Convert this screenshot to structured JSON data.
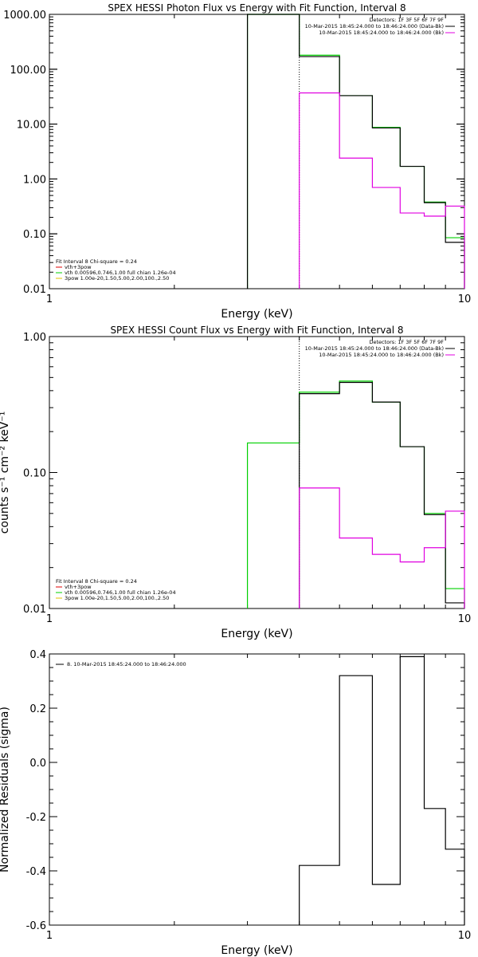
{
  "chart_data": [
    {
      "type": "line",
      "title": "SPEX HESSI Photon Flux vs Energy with Fit Function, Interval 8",
      "xlabel": "Energy (keV)",
      "ylabel": "",
      "xscale": "log",
      "yscale": "log",
      "xlim": [
        1,
        10
      ],
      "ylim": [
        0.01,
        1000
      ],
      "x_ticks": [
        "1",
        "10"
      ],
      "y_ticks": [
        "0.01",
        "0.10",
        "1.00",
        "10.00",
        "100.00",
        "1000.00"
      ],
      "x_edges": [
        3,
        4,
        5,
        6,
        7,
        8,
        9,
        10
      ],
      "series": [
        {
          "color": "#00d000",
          "values": [
            1000,
            180,
            33,
            8.7,
            1.7,
            0.38,
            0.085
          ]
        },
        {
          "color": "#000000",
          "values": [
            1000,
            170,
            33,
            8.5,
            1.7,
            0.37,
            0.07
          ]
        },
        {
          "color": "#e000e0",
          "values": [
            null,
            37,
            2.4,
            0.7,
            0.24,
            0.21,
            0.32
          ]
        }
      ],
      "legend_top": {
        "header": "Detectors: 1F 3F 5F 6F 7F 9F",
        "items": [
          {
            "label": "10-Mar-2015 18:45:24.000 to 18:46:24.000 (Data-Bk)",
            "color": "#000000"
          },
          {
            "label": "10-Mar-2015 18:45:24.000 to 18:46:24.000 (Bk)",
            "color": "#e000e0"
          }
        ]
      },
      "legend_fit": {
        "header": "Fit Interval  8    Chi-square = 0.24",
        "items": [
          {
            "label": "vth+3pow",
            "color": "#e00000"
          },
          {
            "label": "vth 0.00596,0.746,1.00   full chian 1.26e-04",
            "color": "#00d000"
          },
          {
            "label": "3pow 1.00e-20,1.50,5.00,2.00,100.,2.50",
            "color": "#e0c000"
          }
        ]
      }
    },
    {
      "type": "line",
      "title": "SPEX HESSI Count Flux vs Energy with Fit Function, Interval 8",
      "xlabel": "Energy (keV)",
      "ylabel": "counts s⁻¹ cm⁻² keV⁻¹",
      "xscale": "log",
      "yscale": "log",
      "xlim": [
        1,
        10
      ],
      "ylim": [
        0.01,
        1.0
      ],
      "x_ticks": [
        "1",
        "10"
      ],
      "y_ticks": [
        "0.01",
        "0.10",
        "1.00"
      ],
      "x_edges": [
        3,
        4,
        5,
        6,
        7,
        8,
        9,
        10
      ],
      "series": [
        {
          "color": "#00d000",
          "values": [
            0.165,
            0.39,
            0.47,
            0.33,
            0.155,
            0.05,
            0.014
          ]
        },
        {
          "color": "#000000",
          "values": [
            null,
            0.38,
            0.46,
            0.33,
            0.155,
            0.049,
            0.011
          ]
        },
        {
          "color": "#e000e0",
          "values": [
            null,
            0.077,
            0.033,
            0.025,
            0.022,
            0.028,
            0.052
          ]
        }
      ],
      "legend_top": {
        "header": "Detectors: 1F 3F 5F 6F 7F 9F",
        "items": [
          {
            "label": "10-Mar-2015 18:45:24.000 to 18:46:24.000 (Data-Bk)",
            "color": "#000000"
          },
          {
            "label": "10-Mar-2015 18:45:24.000 to 18:46:24.000 (Bk)",
            "color": "#e000e0"
          }
        ]
      },
      "legend_fit": {
        "header": "Fit Interval  8    Chi-square = 0.24",
        "items": [
          {
            "label": "vth+3pow",
            "color": "#e00000"
          },
          {
            "label": "vth 0.00596,0.746,1.00   full chian 1.26e-04",
            "color": "#00d000"
          },
          {
            "label": "3pow 1.00e-20,1.50,5.00,2.00,100.,2.50",
            "color": "#e0c000"
          }
        ]
      }
    },
    {
      "type": "line",
      "title": "",
      "xlabel": "Energy (keV)",
      "ylabel": "Normalized Residuals (sigma)",
      "xscale": "log",
      "yscale": "linear",
      "xlim": [
        1,
        10
      ],
      "ylim": [
        -0.6,
        0.4
      ],
      "x_ticks": [
        "1",
        "10"
      ],
      "y_ticks": [
        "-0.6",
        "-0.4",
        "-0.2",
        "0.0",
        "0.2",
        "0.4"
      ],
      "x_edges": [
        4,
        5,
        6,
        7,
        8,
        9,
        10
      ],
      "series": [
        {
          "color": "#000000",
          "values": [
            -0.38,
            0.32,
            -0.45,
            0.39,
            -0.17,
            -0.32
          ]
        }
      ],
      "legend_top": {
        "header": "",
        "items": [
          {
            "label": "8. 10-Mar-2015 18:45:24.000 to 18:46:24.000",
            "color": "#000000"
          }
        ]
      }
    }
  ]
}
